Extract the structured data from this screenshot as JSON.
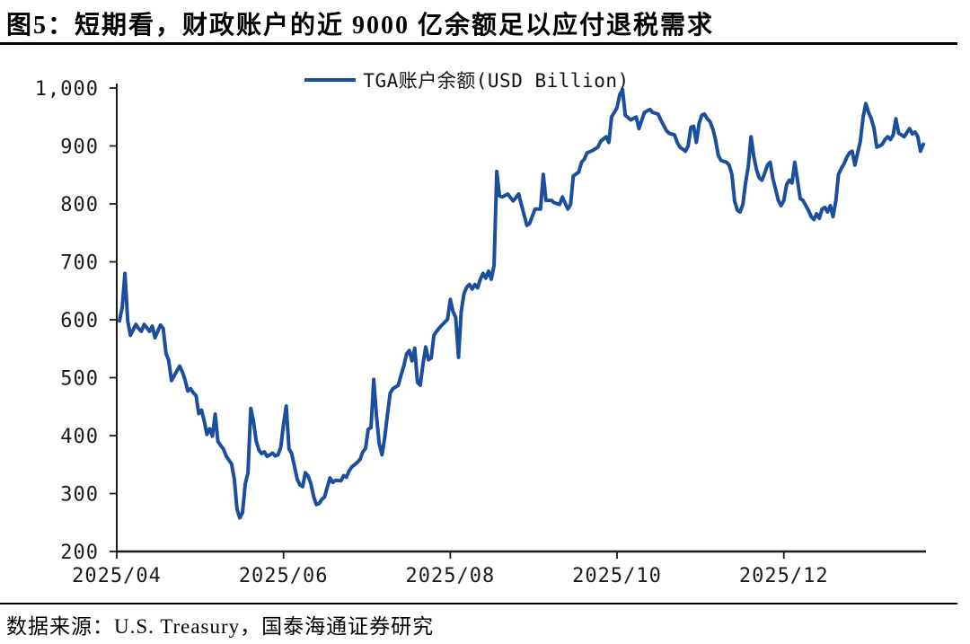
{
  "figure": {
    "title": "图5：短期看，财政账户的近 9000 亿余额足以应付退税需求",
    "source_note": "数据来源：U.S. Treasury，国泰海通证券研究"
  },
  "legend": {
    "series_label": "TGA账户余额(USD Billion)"
  },
  "colors": {
    "line": "#1b4f9e",
    "axis": "#1a1a1a",
    "rule": "#000000",
    "background": "#ffffff"
  },
  "chart_data": {
    "type": "line",
    "title": "",
    "xlabel": "",
    "ylabel": "",
    "grid": false,
    "legend_position": "top-center",
    "series_name": "TGA账户余额(USD Billion)",
    "x_axis": {
      "kind": "time",
      "start_date": "2025-04-01",
      "domain_days": [
        0,
        296
      ],
      "ticks": [
        {
          "day": 0,
          "label": "2025/04"
        },
        {
          "day": 61,
          "label": "2025/06"
        },
        {
          "day": 122,
          "label": "2025/08"
        },
        {
          "day": 183,
          "label": "2025/10"
        },
        {
          "day": 244,
          "label": "2025/12"
        }
      ]
    },
    "y_axis": {
      "min": 200,
      "max": 1000,
      "tick_step": 100,
      "ticks": [
        {
          "value": 1000,
          "label": "1,000"
        },
        {
          "value": 900,
          "label": "900"
        },
        {
          "value": 800,
          "label": "800"
        },
        {
          "value": 700,
          "label": "700"
        },
        {
          "value": 600,
          "label": "600"
        },
        {
          "value": 500,
          "label": "500"
        },
        {
          "value": 400,
          "label": "400"
        },
        {
          "value": 300,
          "label": "300"
        },
        {
          "value": 200,
          "label": "200"
        }
      ]
    },
    "points_format": [
      "days_since_2025-04-01",
      "usd_billion"
    ],
    "points": [
      [
        1,
        598
      ],
      [
        2,
        622
      ],
      [
        3,
        680
      ],
      [
        4,
        598
      ],
      [
        5,
        573
      ],
      [
        7,
        592
      ],
      [
        8,
        585
      ],
      [
        9,
        580
      ],
      [
        10,
        592
      ],
      [
        11,
        586
      ],
      [
        12,
        580
      ],
      [
        13,
        589
      ],
      [
        14,
        569
      ],
      [
        16,
        591
      ],
      [
        17,
        585
      ],
      [
        18,
        542
      ],
      [
        19,
        530
      ],
      [
        20,
        495
      ],
      [
        21,
        503
      ],
      [
        22,
        512
      ],
      [
        23,
        520
      ],
      [
        24,
        510
      ],
      [
        25,
        496
      ],
      [
        26,
        477
      ],
      [
        27,
        481
      ],
      [
        28,
        474
      ],
      [
        29,
        469
      ],
      [
        30,
        438
      ],
      [
        31,
        444
      ],
      [
        32,
        425
      ],
      [
        33,
        402
      ],
      [
        34,
        412
      ],
      [
        35,
        399
      ],
      [
        36,
        437
      ],
      [
        37,
        390
      ],
      [
        38,
        383
      ],
      [
        39,
        377
      ],
      [
        40,
        365
      ],
      [
        41,
        358
      ],
      [
        42,
        351
      ],
      [
        43,
        325
      ],
      [
        44,
        273
      ],
      [
        45,
        258
      ],
      [
        46,
        267
      ],
      [
        47,
        317
      ],
      [
        48,
        336
      ],
      [
        49,
        447
      ],
      [
        50,
        425
      ],
      [
        51,
        391
      ],
      [
        52,
        375
      ],
      [
        53,
        369
      ],
      [
        54,
        372
      ],
      [
        55,
        364
      ],
      [
        56,
        367
      ],
      [
        57,
        370
      ],
      [
        58,
        365
      ],
      [
        59,
        367
      ],
      [
        60,
        380
      ],
      [
        61,
        420
      ],
      [
        62,
        451
      ],
      [
        63,
        377
      ],
      [
        64,
        369
      ],
      [
        66,
        325
      ],
      [
        67,
        315
      ],
      [
        68,
        312
      ],
      [
        69,
        336
      ],
      [
        70,
        330
      ],
      [
        71,
        317
      ],
      [
        72,
        295
      ],
      [
        73,
        281
      ],
      [
        74,
        283
      ],
      [
        75,
        290
      ],
      [
        76,
        294
      ],
      [
        77,
        311
      ],
      [
        78,
        327
      ],
      [
        79,
        319
      ],
      [
        80,
        323
      ],
      [
        82,
        322
      ],
      [
        83,
        331
      ],
      [
        84,
        328
      ],
      [
        85,
        339
      ],
      [
        86,
        346
      ],
      [
        87,
        350
      ],
      [
        88,
        354
      ],
      [
        89,
        359
      ],
      [
        90,
        372
      ],
      [
        91,
        378
      ],
      [
        92,
        411
      ],
      [
        93,
        414
      ],
      [
        94,
        497
      ],
      [
        95,
        434
      ],
      [
        96,
        386
      ],
      [
        97,
        367
      ],
      [
        98,
        396
      ],
      [
        99,
        435
      ],
      [
        100,
        473
      ],
      [
        101,
        481
      ],
      [
        102,
        484
      ],
      [
        103,
        487
      ],
      [
        104,
        505
      ],
      [
        105,
        520
      ],
      [
        106,
        541
      ],
      [
        107,
        547
      ],
      [
        108,
        529
      ],
      [
        109,
        551
      ],
      [
        110,
        492
      ],
      [
        111,
        487
      ],
      [
        112,
        523
      ],
      [
        113,
        553
      ],
      [
        114,
        531
      ],
      [
        115,
        534
      ],
      [
        116,
        573
      ],
      [
        117,
        580
      ],
      [
        118,
        586
      ],
      [
        119,
        591
      ],
      [
        120,
        596
      ],
      [
        121,
        601
      ],
      [
        122,
        635
      ],
      [
        123,
        614
      ],
      [
        124,
        604
      ],
      [
        125,
        535
      ],
      [
        126,
        614
      ],
      [
        127,
        645
      ],
      [
        128,
        656
      ],
      [
        129,
        661
      ],
      [
        130,
        653
      ],
      [
        131,
        661
      ],
      [
        132,
        655
      ],
      [
        133,
        670
      ],
      [
        134,
        680
      ],
      [
        135,
        672
      ],
      [
        136,
        684
      ],
      [
        137,
        670
      ],
      [
        138,
        694
      ],
      [
        139,
        856
      ],
      [
        140,
        814
      ],
      [
        141,
        812
      ],
      [
        143,
        817
      ],
      [
        145,
        805
      ],
      [
        147,
        817
      ],
      [
        148,
        799
      ],
      [
        150,
        763
      ],
      [
        151,
        766
      ],
      [
        153,
        791
      ],
      [
        155,
        791
      ],
      [
        156,
        851
      ],
      [
        157,
        806
      ],
      [
        159,
        806
      ],
      [
        160,
        802
      ],
      [
        162,
        799
      ],
      [
        163,
        812
      ],
      [
        165,
        791
      ],
      [
        166,
        799
      ],
      [
        167,
        848
      ],
      [
        169,
        855
      ],
      [
        170,
        872
      ],
      [
        171,
        877
      ],
      [
        172,
        888
      ],
      [
        174,
        892
      ],
      [
        176,
        898
      ],
      [
        177,
        908
      ],
      [
        179,
        916
      ],
      [
        180,
        906
      ],
      [
        181,
        950
      ],
      [
        183,
        966
      ],
      [
        184,
        989
      ],
      [
        185,
        997
      ],
      [
        186,
        953
      ],
      [
        188,
        945
      ],
      [
        190,
        950
      ],
      [
        191,
        930
      ],
      [
        193,
        958
      ],
      [
        195,
        963
      ],
      [
        196,
        958
      ],
      [
        198,
        955
      ],
      [
        199,
        945
      ],
      [
        201,
        927
      ],
      [
        202,
        922
      ],
      [
        204,
        919
      ],
      [
        205,
        906
      ],
      [
        206,
        898
      ],
      [
        208,
        891
      ],
      [
        209,
        900
      ],
      [
        210,
        932
      ],
      [
        211,
        934
      ],
      [
        212,
        906
      ],
      [
        213,
        939
      ],
      [
        214,
        953
      ],
      [
        215,
        955
      ],
      [
        216,
        947
      ],
      [
        217,
        942
      ],
      [
        218,
        930
      ],
      [
        219,
        911
      ],
      [
        220,
        884
      ],
      [
        221,
        875
      ],
      [
        223,
        872
      ],
      [
        224,
        867
      ],
      [
        225,
        851
      ],
      [
        226,
        805
      ],
      [
        227,
        789
      ],
      [
        228,
        786
      ],
      [
        229,
        799
      ],
      [
        230,
        836
      ],
      [
        231,
        864
      ],
      [
        232,
        916
      ],
      [
        233,
        883
      ],
      [
        234,
        859
      ],
      [
        235,
        845
      ],
      [
        236,
        841
      ],
      [
        237,
        853
      ],
      [
        238,
        867
      ],
      [
        239,
        872
      ],
      [
        240,
        844
      ],
      [
        241,
        825
      ],
      [
        242,
        806
      ],
      [
        243,
        797
      ],
      [
        244,
        806
      ],
      [
        245,
        833
      ],
      [
        246,
        841
      ],
      [
        247,
        836
      ],
      [
        248,
        872
      ],
      [
        249,
        841
      ],
      [
        250,
        809
      ],
      [
        251,
        806
      ],
      [
        253,
        789
      ],
      [
        254,
        778
      ],
      [
        255,
        773
      ],
      [
        256,
        783
      ],
      [
        257,
        775
      ],
      [
        258,
        791
      ],
      [
        259,
        794
      ],
      [
        260,
        786
      ],
      [
        261,
        797
      ],
      [
        262,
        778
      ],
      [
        263,
        805
      ],
      [
        264,
        851
      ],
      [
        265,
        861
      ],
      [
        266,
        869
      ],
      [
        267,
        880
      ],
      [
        268,
        888
      ],
      [
        269,
        891
      ],
      [
        270,
        867
      ],
      [
        271,
        888
      ],
      [
        272,
        908
      ],
      [
        273,
        950
      ],
      [
        274,
        973
      ],
      [
        275,
        958
      ],
      [
        276,
        947
      ],
      [
        277,
        930
      ],
      [
        278,
        898
      ],
      [
        279,
        900
      ],
      [
        280,
        903
      ],
      [
        281,
        911
      ],
      [
        282,
        916
      ],
      [
        283,
        911
      ],
      [
        284,
        919
      ],
      [
        285,
        947
      ],
      [
        286,
        922
      ],
      [
        287,
        919
      ],
      [
        288,
        916
      ],
      [
        290,
        930
      ],
      [
        291,
        921
      ],
      [
        292,
        924
      ],
      [
        293,
        916
      ],
      [
        294,
        891
      ],
      [
        295,
        903
      ]
    ]
  }
}
